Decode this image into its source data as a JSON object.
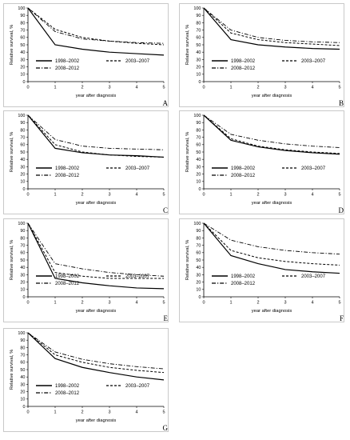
{
  "x_ticks": [
    "0",
    "1",
    "2",
    "3",
    "4",
    "5"
  ],
  "y_ticks": [
    "0",
    "10",
    "20",
    "30",
    "40",
    "50",
    "60",
    "70",
    "80",
    "90",
    "100"
  ],
  "chart_data": [
    {
      "type": "line",
      "panel": "A",
      "xlabel": "year after diagnosis",
      "ylabel": "Relative survival, %",
      "xlim": [
        0,
        5
      ],
      "ylim": [
        0,
        100
      ],
      "x": [
        0,
        1,
        2,
        3,
        4,
        5
      ],
      "series": [
        {
          "name": "1998–2002",
          "values": [
            100,
            50,
            44,
            40,
            38,
            36
          ]
        },
        {
          "name": "2003–2007",
          "values": [
            100,
            71,
            60,
            55,
            52,
            50
          ]
        },
        {
          "name": "2008–2012",
          "values": [
            100,
            68,
            58,
            55,
            53,
            52
          ]
        }
      ]
    },
    {
      "type": "line",
      "panel": "B",
      "xlabel": "year after diagnosis",
      "ylabel": "Relative survival, %",
      "xlim": [
        0,
        5
      ],
      "ylim": [
        0,
        100
      ],
      "x": [
        0,
        1,
        2,
        3,
        4,
        5
      ],
      "series": [
        {
          "name": "1998–2002",
          "values": [
            100,
            57,
            50,
            47,
            45,
            44
          ]
        },
        {
          "name": "2003–2007",
          "values": [
            100,
            66,
            57,
            53,
            51,
            49
          ]
        },
        {
          "name": "2008–2012",
          "values": [
            100,
            70,
            60,
            56,
            54,
            53
          ]
        }
      ]
    },
    {
      "type": "line",
      "panel": "C",
      "xlabel": "year after diagnosis",
      "ylabel": "Relative survival, %",
      "xlim": [
        0,
        5
      ],
      "ylim": [
        0,
        100
      ],
      "x": [
        0,
        1,
        2,
        3,
        4,
        5
      ],
      "series": [
        {
          "name": "1998–2002",
          "values": [
            100,
            55,
            49,
            46,
            45,
            43
          ]
        },
        {
          "name": "2003–2007",
          "values": [
            100,
            60,
            50,
            46,
            44,
            43
          ]
        },
        {
          "name": "2008–2012",
          "values": [
            100,
            67,
            58,
            55,
            54,
            53
          ]
        }
      ]
    },
    {
      "type": "line",
      "panel": "D",
      "xlabel": "year after diagnosis",
      "ylabel": "Relative survival, %",
      "xlim": [
        0,
        5
      ],
      "ylim": [
        0,
        100
      ],
      "x": [
        0,
        1,
        2,
        3,
        4,
        5
      ],
      "series": [
        {
          "name": "1998–2002",
          "values": [
            100,
            66,
            57,
            52,
            49,
            47
          ]
        },
        {
          "name": "2003–2007",
          "values": [
            100,
            68,
            58,
            53,
            50,
            48
          ]
        },
        {
          "name": "2008–2012",
          "values": [
            100,
            74,
            66,
            61,
            58,
            56
          ]
        }
      ]
    },
    {
      "type": "line",
      "panel": "E",
      "xlabel": "year after diagnosis",
      "ylabel": "Relative survival, %",
      "xlim": [
        0,
        5
      ],
      "ylim": [
        0,
        100
      ],
      "x": [
        0,
        1,
        2,
        3,
        4,
        5
      ],
      "series": [
        {
          "name": "1998–2002",
          "values": [
            100,
            25,
            19,
            15,
            12,
            11
          ]
        },
        {
          "name": "2003–2007",
          "values": [
            100,
            33,
            28,
            25,
            25,
            25
          ]
        },
        {
          "name": "2008–2012",
          "values": [
            100,
            45,
            38,
            33,
            30,
            28
          ]
        }
      ]
    },
    {
      "type": "line",
      "panel": "F",
      "xlabel": "year after diagnosis",
      "ylabel": "Relative survival, %",
      "xlim": [
        0,
        5
      ],
      "ylim": [
        0,
        100
      ],
      "x": [
        0,
        1,
        2,
        3,
        4,
        5
      ],
      "series": [
        {
          "name": "1998–2002",
          "values": [
            100,
            56,
            45,
            37,
            34,
            32
          ]
        },
        {
          "name": "2003–2007",
          "values": [
            100,
            63,
            53,
            48,
            45,
            43
          ]
        },
        {
          "name": "2008–2012",
          "values": [
            100,
            77,
            68,
            63,
            60,
            58
          ]
        }
      ]
    },
    {
      "type": "line",
      "panel": "G",
      "xlabel": "year after diagnosis",
      "ylabel": "Relative survival, %",
      "xlim": [
        0,
        5
      ],
      "ylim": [
        0,
        100
      ],
      "x": [
        0,
        1,
        2,
        3,
        4,
        5
      ],
      "series": [
        {
          "name": "1998–2002",
          "values": [
            100,
            65,
            53,
            46,
            40,
            36
          ]
        },
        {
          "name": "2003–2007",
          "values": [
            100,
            70,
            60,
            53,
            49,
            46
          ]
        },
        {
          "name": "2008–2012",
          "values": [
            100,
            74,
            64,
            58,
            54,
            51
          ]
        }
      ]
    }
  ]
}
